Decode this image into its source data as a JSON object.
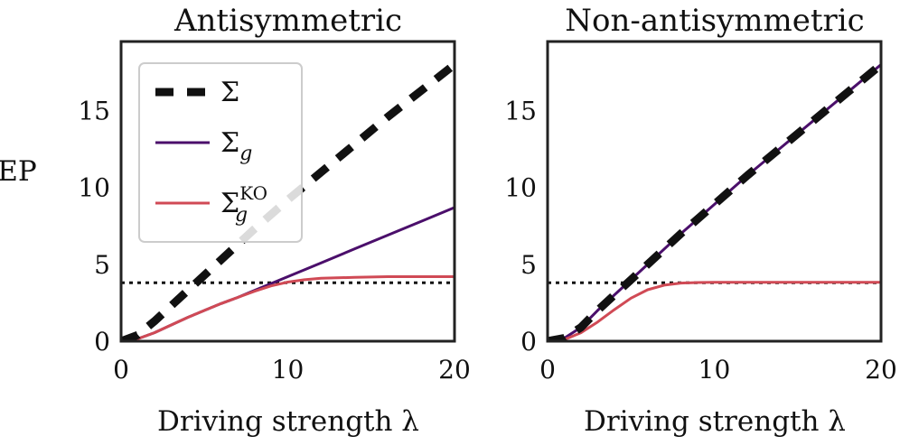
{
  "chart_data": [
    {
      "type": "line",
      "title": "Antisymmetric",
      "xlabel": "Driving strength λ",
      "ylabel": "EP",
      "xlim": [
        0,
        20
      ],
      "ylim": [
        0,
        19.5
      ],
      "xticks": [
        "0",
        "10",
        "20"
      ],
      "yticks": [
        "0",
        "5",
        "10",
        "15"
      ],
      "xtick_values": [
        0,
        10,
        20
      ],
      "ytick_values": [
        0,
        5,
        10,
        15
      ],
      "legend": {
        "placement": "top-left",
        "entries": [
          {
            "symbol": "Σ",
            "sub": "",
            "sup": "",
            "color": "#111111",
            "style": "dashed-thick"
          },
          {
            "symbol": "Σ",
            "sub": "g",
            "sup": "",
            "color": "#4b0f6b",
            "style": "solid"
          },
          {
            "symbol": "Σ",
            "sub": "g",
            "sup": "KO",
            "color": "#d04a55",
            "style": "solid"
          }
        ]
      },
      "hline": {
        "y": 3.8,
        "color": "#111111",
        "style": "dotted"
      },
      "series": [
        {
          "name": "Σ",
          "color": "#111111",
          "style": "dashed-thick",
          "x": [
            0,
            1,
            2,
            4,
            6,
            8,
            10,
            12,
            14,
            16,
            18,
            20
          ],
          "y": [
            0,
            0.4,
            1.3,
            3.3,
            5.3,
            7.3,
            9.2,
            11.0,
            12.8,
            14.6,
            16.3,
            18.0
          ]
        },
        {
          "name": "Σ_g",
          "color": "#4b0f6b",
          "style": "solid",
          "x": [
            0,
            1,
            2,
            3,
            4,
            5,
            6,
            7,
            8,
            10,
            12,
            14,
            16,
            18,
            20
          ],
          "y": [
            0,
            0.15,
            0.55,
            1.05,
            1.55,
            2.0,
            2.45,
            2.85,
            3.3,
            4.2,
            5.1,
            6.0,
            6.9,
            7.8,
            8.7
          ]
        },
        {
          "name": "Σ_g^KO",
          "color": "#d04a55",
          "style": "solid",
          "x": [
            0,
            1,
            2,
            3,
            4,
            5,
            6,
            7,
            8,
            9,
            10,
            11,
            12,
            14,
            16,
            18,
            20
          ],
          "y": [
            0,
            0.15,
            0.55,
            1.05,
            1.55,
            2.0,
            2.45,
            2.85,
            3.25,
            3.6,
            3.85,
            4.0,
            4.1,
            4.15,
            4.2,
            4.2,
            4.2
          ]
        }
      ]
    },
    {
      "type": "line",
      "title": "Non-antisymmetric",
      "xlabel": "Driving strength λ",
      "ylabel": "",
      "xlim": [
        0,
        20
      ],
      "ylim": [
        0,
        19.5
      ],
      "xticks": [
        "0",
        "10",
        "20"
      ],
      "yticks": [
        "0",
        "5",
        "10",
        "15"
      ],
      "xtick_values": [
        0,
        10,
        20
      ],
      "ytick_values": [
        0,
        5,
        10,
        15
      ],
      "hline": {
        "y": 3.8,
        "color": "#111111",
        "style": "dotted"
      },
      "series": [
        {
          "name": "Σ",
          "color": "#111111",
          "style": "dashed-thick",
          "x": [
            0,
            1,
            2,
            3,
            4,
            5,
            6,
            8,
            10,
            12,
            14,
            16,
            18,
            20
          ],
          "y": [
            0,
            0.2,
            0.9,
            2.0,
            3.0,
            4.0,
            5.0,
            7.0,
            8.9,
            10.8,
            12.6,
            14.4,
            16.2,
            18.0
          ]
        },
        {
          "name": "Σ_g",
          "color": "#4b0f6b",
          "style": "solid",
          "x": [
            0,
            1,
            2,
            3,
            4,
            5,
            6,
            8,
            10,
            12,
            14,
            16,
            18,
            20
          ],
          "y": [
            0,
            0.2,
            0.9,
            2.0,
            3.0,
            4.0,
            5.0,
            7.0,
            8.9,
            10.8,
            12.6,
            14.4,
            16.2,
            18.0
          ]
        },
        {
          "name": "Σ_g^KO",
          "color": "#d04a55",
          "style": "solid",
          "x": [
            0,
            1,
            2,
            3,
            4,
            5,
            6,
            7,
            8,
            9,
            10,
            12,
            15,
            20
          ],
          "y": [
            0,
            0.1,
            0.55,
            1.25,
            2.05,
            2.8,
            3.35,
            3.65,
            3.78,
            3.82,
            3.83,
            3.83,
            3.83,
            3.83
          ]
        }
      ]
    }
  ]
}
